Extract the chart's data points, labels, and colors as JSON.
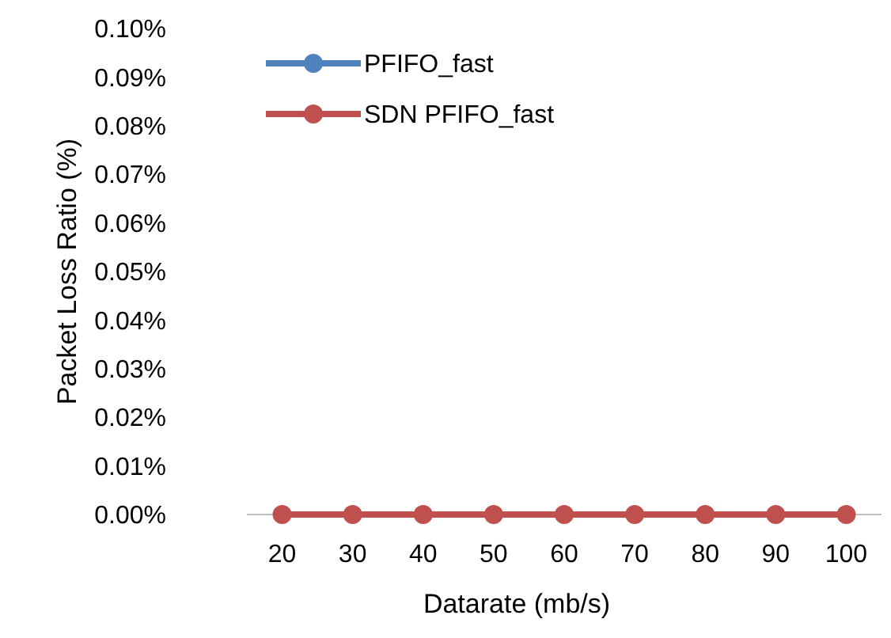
{
  "chart_data": {
    "type": "line",
    "xlabel": "Datarate (mb/s)",
    "ylabel": "Packet Loss Ratio (%)",
    "categories": [
      "20",
      "30",
      "40",
      "50",
      "60",
      "70",
      "80",
      "90",
      "100"
    ],
    "series": [
      {
        "name": "PFIFO_fast",
        "color": "#4f81bd",
        "values": [
          null,
          null,
          null,
          null,
          null,
          null,
          null,
          null,
          null
        ]
      },
      {
        "name": "SDN PFIFO_fast",
        "color": "#c0504d",
        "values": [
          0,
          0,
          0,
          0,
          0,
          0,
          0,
          0,
          0
        ]
      }
    ],
    "ylim": [
      0,
      0.1
    ],
    "yticks": [
      {
        "value": 0,
        "label": "0.00%"
      },
      {
        "value": 0.01,
        "label": "0.01%"
      },
      {
        "value": 0.02,
        "label": "0.02%"
      },
      {
        "value": 0.03,
        "label": "0.03%"
      },
      {
        "value": 0.04,
        "label": "0.04%"
      },
      {
        "value": 0.05,
        "label": "0.05%"
      },
      {
        "value": 0.06,
        "label": "0.06%"
      },
      {
        "value": 0.07,
        "label": "0.07%"
      },
      {
        "value": 0.08,
        "label": "0.08%"
      },
      {
        "value": 0.09,
        "label": "0.09%"
      },
      {
        "value": 0.1,
        "label": "0.10%"
      }
    ],
    "legend": "top left",
    "marker": "circle",
    "line_style": "solid",
    "grid": false
  }
}
